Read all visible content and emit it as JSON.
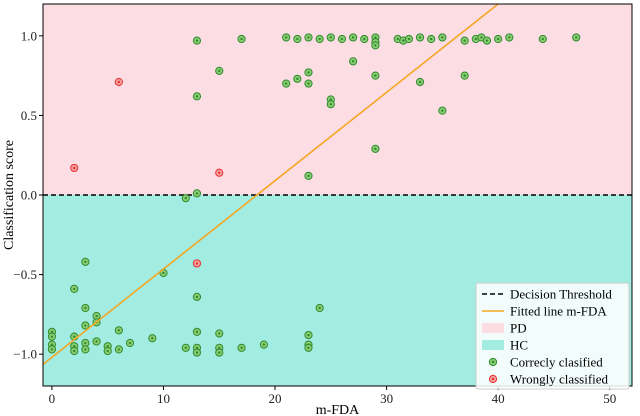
{
  "chart_data": {
    "type": "scatter",
    "xlabel": "m-FDA",
    "ylabel": "Classification score",
    "xlim": [
      -0.8,
      52
    ],
    "ylim": [
      -1.2,
      1.2
    ],
    "x_ticks": [
      0,
      10,
      20,
      30,
      40,
      50
    ],
    "x_tick_labels": [
      "0",
      "10",
      "20",
      "30",
      "40",
      "50"
    ],
    "y_ticks": [
      -1.0,
      -0.5,
      0.0,
      0.5,
      1.0
    ],
    "y_tick_labels": [
      "−1.0",
      "−0.5",
      "0.0",
      "0.5",
      "1.0"
    ],
    "threshold": 0.0,
    "fitted_line": {
      "slope": 0.0555,
      "intercept": -1.02
    },
    "regions": [
      {
        "name": "PD",
        "y_from": 0.0,
        "y_to": 1.2,
        "color": "#fcdde4"
      },
      {
        "name": "HC",
        "y_from": -1.2,
        "y_to": 0.0,
        "color": "#a3ece1"
      }
    ],
    "colors": {
      "pd_region": "#fcdde4",
      "hc_region": "#a3ece1",
      "threshold": "#000000",
      "fitted_line": "#f5a623",
      "correct_edge": "#2e8b2e",
      "correct_fill": "#8ccd73",
      "wrong_edge": "#e63232",
      "wrong_fill": "#f7a0a0"
    },
    "legend": {
      "position": "lower-right",
      "entries": [
        {
          "label": "Decision Threshold",
          "kind": "dashed-line"
        },
        {
          "label": "Fitted line m-FDA",
          "kind": "line"
        },
        {
          "label": "PD",
          "kind": "patch-pd"
        },
        {
          "label": "HC",
          "kind": "patch-hc"
        },
        {
          "label": "Correcly clasified",
          "kind": "marker-correct"
        },
        {
          "label": "Wrongly classified",
          "kind": "marker-wrong"
        }
      ]
    },
    "series": [
      {
        "name": "Correcly clasified",
        "points": [
          [
            13,
            0.97
          ],
          [
            17,
            0.98
          ],
          [
            21,
            0.99
          ],
          [
            22,
            0.98
          ],
          [
            23,
            0.99
          ],
          [
            24,
            0.98
          ],
          [
            25,
            0.99
          ],
          [
            26,
            0.98
          ],
          [
            27,
            0.99
          ],
          [
            28,
            0.98
          ],
          [
            29,
            0.99
          ],
          [
            29,
            0.96
          ],
          [
            29,
            0.94
          ],
          [
            31,
            0.98
          ],
          [
            31.5,
            0.97
          ],
          [
            32,
            0.98
          ],
          [
            33,
            0.99
          ],
          [
            34,
            0.98
          ],
          [
            35,
            0.99
          ],
          [
            37,
            0.97
          ],
          [
            38,
            0.98
          ],
          [
            38.5,
            0.99
          ],
          [
            39,
            0.97
          ],
          [
            40,
            0.98
          ],
          [
            41,
            0.99
          ],
          [
            44,
            0.98
          ],
          [
            47,
            0.99
          ],
          [
            15,
            0.78
          ],
          [
            21,
            0.7
          ],
          [
            22,
            0.73
          ],
          [
            23,
            0.77
          ],
          [
            23,
            0.7
          ],
          [
            27,
            0.84
          ],
          [
            29,
            0.75
          ],
          [
            33,
            0.71
          ],
          [
            37,
            0.75
          ],
          [
            13,
            0.62
          ],
          [
            25,
            0.6
          ],
          [
            25,
            0.57
          ],
          [
            35,
            0.53
          ],
          [
            29,
            0.29
          ],
          [
            23,
            0.12
          ],
          [
            13,
            0.01
          ],
          [
            12,
            -0.02
          ],
          [
            3,
            -0.42
          ],
          [
            2,
            -0.59
          ],
          [
            3,
            -0.71
          ],
          [
            4,
            -0.76
          ],
          [
            3,
            -0.82
          ],
          [
            4,
            -0.8
          ],
          [
            0,
            -0.86
          ],
          [
            0,
            -0.89
          ],
          [
            0,
            -0.94
          ],
          [
            0,
            -0.97
          ],
          [
            2,
            -0.89
          ],
          [
            2,
            -0.95
          ],
          [
            2,
            -0.98
          ],
          [
            3,
            -0.93
          ],
          [
            3,
            -0.97
          ],
          [
            4,
            -0.92
          ],
          [
            5,
            -0.95
          ],
          [
            5,
            -0.98
          ],
          [
            6,
            -0.85
          ],
          [
            6,
            -0.97
          ],
          [
            7,
            -0.93
          ],
          [
            9,
            -0.9
          ],
          [
            10,
            -0.49
          ],
          [
            12,
            -0.96
          ],
          [
            13,
            -0.64
          ],
          [
            13,
            -0.86
          ],
          [
            13,
            -0.96
          ],
          [
            13,
            -0.99
          ],
          [
            15,
            -0.87
          ],
          [
            15,
            -0.96
          ],
          [
            15,
            -0.99
          ],
          [
            17,
            -0.96
          ],
          [
            19,
            -0.94
          ],
          [
            23,
            -0.88
          ],
          [
            23,
            -0.94
          ],
          [
            23,
            -0.96
          ],
          [
            24,
            -0.71
          ]
        ]
      },
      {
        "name": "Wrongly classified",
        "points": [
          [
            2,
            0.17
          ],
          [
            6,
            0.71
          ],
          [
            15,
            0.14
          ],
          [
            13,
            -0.43
          ]
        ]
      }
    ]
  }
}
